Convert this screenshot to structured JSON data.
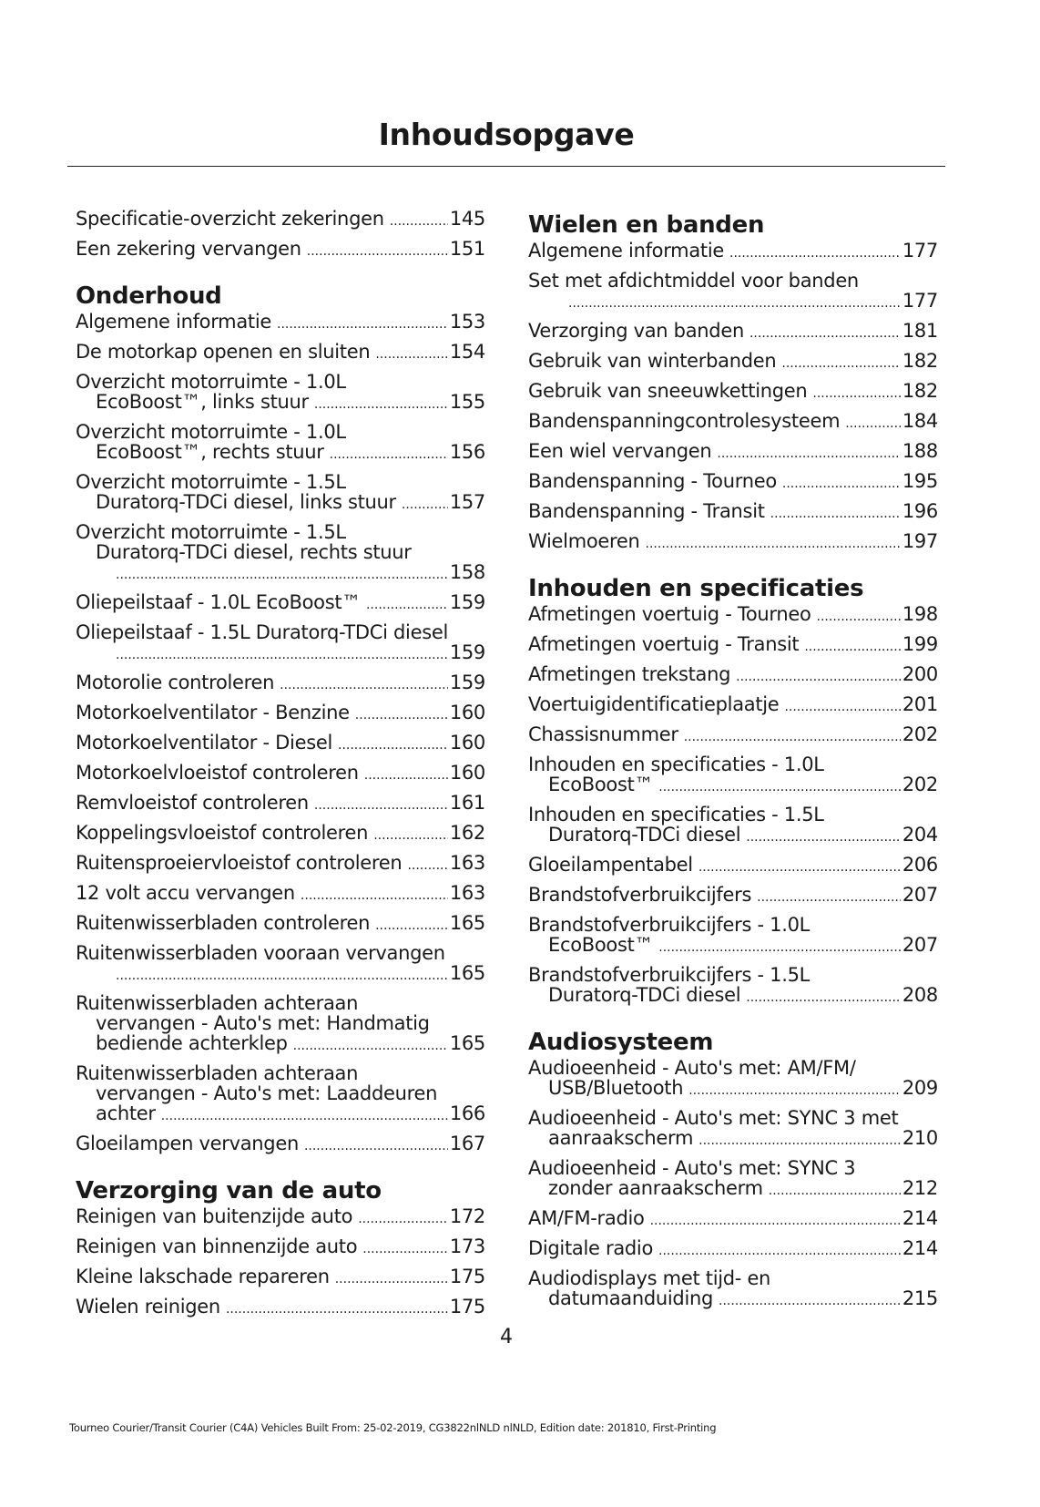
{
  "title": "Inhoudsopgave",
  "columns": [
    [
      {
        "entries": [
          {
            "lines": [
              "Specificatie-overzicht zekeringen"
            ],
            "page": "145"
          },
          {
            "lines": [
              "Een zekering vervangen"
            ],
            "page": "151"
          }
        ]
      },
      {
        "heading": "Onderhoud",
        "entries": [
          {
            "lines": [
              "Algemene informatie"
            ],
            "page": "153"
          },
          {
            "lines": [
              "De motorkap openen en sluiten"
            ],
            "page": "154"
          },
          {
            "lines": [
              "Overzicht motorruimte - 1.0L",
              "EcoBoost™, links stuur"
            ],
            "page": "155"
          },
          {
            "lines": [
              "Overzicht motorruimte - 1.0L",
              "EcoBoost™, rechts stuur"
            ],
            "page": "156"
          },
          {
            "lines": [
              "Overzicht motorruimte - 1.5L",
              "Duratorq-TDCi diesel, links stuur"
            ],
            "page": "157"
          },
          {
            "lines": [
              "Overzicht motorruimte - 1.5L",
              "Duratorq-TDCi diesel, rechts stuur",
              ""
            ],
            "page": "158"
          },
          {
            "lines": [
              "Oliepeilstaaf - 1.0L EcoBoost™"
            ],
            "page": "159"
          },
          {
            "lines": [
              "Oliepeilstaaf - 1.5L Duratorq-TDCi diesel",
              ""
            ],
            "page": "159"
          },
          {
            "lines": [
              "Motorolie controleren"
            ],
            "page": "159"
          },
          {
            "lines": [
              "Motorkoelventilator - Benzine"
            ],
            "page": "160"
          },
          {
            "lines": [
              "Motorkoelventilator - Diesel"
            ],
            "page": "160"
          },
          {
            "lines": [
              "Motorkoelvloeistof controleren"
            ],
            "page": "160"
          },
          {
            "lines": [
              "Remvloeistof controleren"
            ],
            "page": "161"
          },
          {
            "lines": [
              "Koppelingsvloeistof controleren"
            ],
            "page": "162"
          },
          {
            "lines": [
              "Ruitensproeiervloeistof controleren"
            ],
            "page": "163"
          },
          {
            "lines": [
              "12 volt accu vervangen"
            ],
            "page": "163"
          },
          {
            "lines": [
              "Ruitenwisserbladen controleren"
            ],
            "page": "165"
          },
          {
            "lines": [
              "Ruitenwisserbladen vooraan vervangen",
              ""
            ],
            "page": "165"
          },
          {
            "lines": [
              "Ruitenwisserbladen achteraan",
              "vervangen - Auto's met: Handmatig",
              "bediende achterklep"
            ],
            "page": "165"
          },
          {
            "lines": [
              "Ruitenwisserbladen achteraan",
              "vervangen - Auto's met: Laaddeuren",
              "achter"
            ],
            "page": "166"
          },
          {
            "lines": [
              "Gloeilampen vervangen"
            ],
            "page": "167"
          }
        ]
      },
      {
        "heading": "Verzorging van de auto",
        "entries": [
          {
            "lines": [
              "Reinigen van buitenzijde auto"
            ],
            "page": "172"
          },
          {
            "lines": [
              "Reinigen van binnenzijde auto"
            ],
            "page": "173"
          },
          {
            "lines": [
              "Kleine lakschade repareren"
            ],
            "page": "175"
          },
          {
            "lines": [
              "Wielen reinigen"
            ],
            "page": "175"
          }
        ]
      }
    ],
    [
      {
        "heading": "Wielen en banden",
        "entries": [
          {
            "lines": [
              "Algemene informatie"
            ],
            "page": "177"
          },
          {
            "lines": [
              "Set met afdichtmiddel voor banden",
              ""
            ],
            "page": "177"
          },
          {
            "lines": [
              "Verzorging van banden"
            ],
            "page": "181"
          },
          {
            "lines": [
              "Gebruik van winterbanden"
            ],
            "page": "182"
          },
          {
            "lines": [
              "Gebruik van sneeuwkettingen"
            ],
            "page": "182"
          },
          {
            "lines": [
              "Bandenspanningcontrolesysteem"
            ],
            "page": "184"
          },
          {
            "lines": [
              "Een wiel vervangen"
            ],
            "page": "188"
          },
          {
            "lines": [
              "Bandenspanning - Tourneo"
            ],
            "page": "195"
          },
          {
            "lines": [
              "Bandenspanning - Transit"
            ],
            "page": "196"
          },
          {
            "lines": [
              "Wielmoeren"
            ],
            "page": "197"
          }
        ]
      },
      {
        "heading": "Inhouden en specificaties",
        "entries": [
          {
            "lines": [
              "Afmetingen voertuig - Tourneo"
            ],
            "page": "198"
          },
          {
            "lines": [
              "Afmetingen voertuig - Transit"
            ],
            "page": "199"
          },
          {
            "lines": [
              "Afmetingen trekstang"
            ],
            "page": "200"
          },
          {
            "lines": [
              "Voertuigidentificatieplaatje"
            ],
            "page": "201"
          },
          {
            "lines": [
              "Chassisnummer"
            ],
            "page": "202"
          },
          {
            "lines": [
              "Inhouden en specificaties - 1.0L",
              "EcoBoost™"
            ],
            "page": "202"
          },
          {
            "lines": [
              "Inhouden en specificaties - 1.5L",
              "Duratorq-TDCi diesel"
            ],
            "page": "204"
          },
          {
            "lines": [
              "Gloeilampentabel"
            ],
            "page": "206"
          },
          {
            "lines": [
              "Brandstofverbruikcijfers"
            ],
            "page": "207"
          },
          {
            "lines": [
              "Brandstofverbruikcijfers - 1.0L",
              "EcoBoost™"
            ],
            "page": "207"
          },
          {
            "lines": [
              "Brandstofverbruikcijfers - 1.5L",
              "Duratorq-TDCi diesel"
            ],
            "page": "208"
          }
        ]
      },
      {
        "heading": "Audiosysteem",
        "entries": [
          {
            "lines": [
              "Audioeenheid - Auto's met: AM/FM/",
              "USB/Bluetooth"
            ],
            "page": "209"
          },
          {
            "lines": [
              "Audioeenheid - Auto's met: SYNC 3 met",
              "aanraakscherm"
            ],
            "page": "210"
          },
          {
            "lines": [
              "Audioeenheid - Auto's met: SYNC 3",
              "zonder aanraakscherm"
            ],
            "page": "212"
          },
          {
            "lines": [
              "AM/FM-radio"
            ],
            "page": "214"
          },
          {
            "lines": [
              "Digitale radio"
            ],
            "page": "214"
          },
          {
            "lines": [
              "Audiodisplays met tijd- en",
              "datumaanduiding"
            ],
            "page": "215"
          }
        ]
      }
    ]
  ],
  "page_number": "4",
  "footer": "Tourneo Courier/Transit Courier (C4A) Vehicles Built From: 25-02-2019, CG3822nlNLD nlNLD, Edition date: 201810, First-Printing"
}
